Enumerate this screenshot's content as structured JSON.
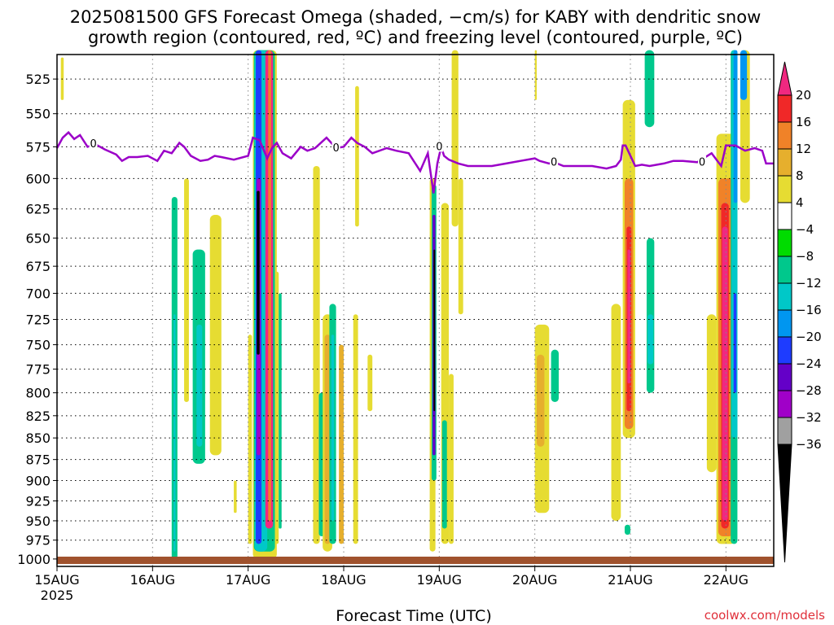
{
  "title_line1": "2025081500 GFS Forecast Omega (shaded, −cm/s) for KABY with dendritic snow",
  "title_line2": "growth region (contoured, red, ºC) and freezing level (contoured, purple, ºC)",
  "credit": "coolwx.com/models",
  "chart_data": {
    "type": "heatmap",
    "title": "2025081500 GFS Forecast Omega (shaded, −cm/s) for KABY with dendritic snow growth region (contoured, red, ºC) and freezing level (contoured, purple, ºC)",
    "xlabel": "Forecast Time (UTC)",
    "ylabel": "",
    "x_ticks": [
      "15AUG",
      "16AUG",
      "17AUG",
      "18AUG",
      "19AUG",
      "20AUG",
      "21AUG",
      "22AUG"
    ],
    "x_tick_year": "2025",
    "x_range_days": [
      0,
      7.5
    ],
    "y_ticks": [
      "525",
      "550",
      "575",
      "600",
      "625",
      "650",
      "675",
      "700",
      "725",
      "750",
      "775",
      "800",
      "825",
      "850",
      "875",
      "900",
      "925",
      "950",
      "975",
      "1000"
    ],
    "y_range_hpa": [
      508,
      1010
    ],
    "y_scale": "log-pressure (inverted)",
    "grid": "dotted",
    "colorbar": {
      "labels": [
        "20",
        "16",
        "12",
        "8",
        "4",
        "−4",
        "−8",
        "−12",
        "−16",
        "−20",
        "−24",
        "−28",
        "−32",
        "−36"
      ],
      "colors": [
        "#f02880",
        "#f02828",
        "#f08228",
        "#e6af2d",
        "#e6dc32",
        "#ffffff",
        "#00dc00",
        "#00c88c",
        "#00c8c8",
        "#0096f0",
        "#1e3cff",
        "#6400c8",
        "#a000c8",
        "#a0a0a0",
        "#000000"
      ]
    },
    "freezing_level_color": "#9b00c8",
    "freezing_level_label": "0",
    "freezing_level": {
      "x_days": [
        0,
        0.06,
        0.12,
        0.18,
        0.24,
        0.32,
        0.4,
        0.5,
        0.62,
        0.68,
        0.75,
        0.84,
        0.95,
        1.05,
        1.12,
        1.2,
        1.28,
        1.33,
        1.4,
        1.5,
        1.58,
        1.65,
        1.72,
        1.85,
        2.0,
        2.05,
        2.12,
        2.2,
        2.25,
        2.3,
        2.36,
        2.45,
        2.55,
        2.62,
        2.7,
        2.82,
        2.92,
        3.0,
        3.08,
        3.14,
        3.22,
        3.3,
        3.45,
        3.55,
        3.68,
        3.8,
        3.88,
        3.94,
        3.98,
        4.02,
        4.05,
        4.1,
        4.2,
        4.3,
        4.4,
        4.55,
        4.7,
        4.85,
        5.0,
        5.05,
        5.15,
        5.2,
        5.3,
        5.45,
        5.6,
        5.75,
        5.85,
        5.9,
        5.92,
        5.95,
        6.05,
        6.12,
        6.2,
        6.35,
        6.45,
        6.55,
        6.7,
        6.85,
        6.95,
        7.0,
        7.1,
        7.2,
        7.3,
        7.38,
        7.42,
        7.5
      ],
      "hpa": [
        576,
        568,
        564,
        569,
        566,
        575,
        573,
        577,
        581,
        586,
        583,
        583,
        582,
        586,
        578,
        580,
        572,
        575,
        582,
        586,
        585,
        582,
        583,
        585,
        582,
        568,
        570,
        584,
        576,
        572,
        580,
        584,
        575,
        578,
        576,
        568,
        576,
        575,
        568,
        572,
        575,
        580,
        576,
        578,
        580,
        594,
        580,
        612,
        588,
        575,
        582,
        585,
        588,
        590,
        590,
        590,
        588,
        586,
        584,
        586,
        588,
        587,
        590,
        590,
        590,
        592,
        590,
        585,
        574,
        574,
        590,
        589,
        590,
        588,
        586,
        586,
        587,
        580,
        590,
        574,
        574,
        578,
        576,
        578,
        588,
        588
      ]
    },
    "omega_regions": [
      {
        "x_days": [
          0.04,
          0.07
        ],
        "hpa_top": 510,
        "hpa_bottom": 540,
        "value": 4
      },
      {
        "x_days": [
          1.2,
          1.26
        ],
        "hpa_top": 615,
        "hpa_bottom": 1000,
        "value": -8
      },
      {
        "x_days": [
          1.22,
          1.24
        ],
        "hpa_top": 720,
        "hpa_bottom": 990,
        "value": -12
      },
      {
        "x_days": [
          1.33,
          1.38
        ],
        "hpa_top": 600,
        "hpa_bottom": 810,
        "value": 4
      },
      {
        "x_days": [
          1.42,
          1.55
        ],
        "hpa_top": 660,
        "hpa_bottom": 880,
        "value": -8
      },
      {
        "x_days": [
          1.46,
          1.52
        ],
        "hpa_top": 730,
        "hpa_bottom": 860,
        "value": -12
      },
      {
        "x_days": [
          1.6,
          1.72
        ],
        "hpa_top": 630,
        "hpa_bottom": 870,
        "value": 4
      },
      {
        "x_days": [
          1.85,
          1.88
        ],
        "hpa_top": 900,
        "hpa_bottom": 940,
        "value": 4
      },
      {
        "x_days": [
          2.0,
          2.04
        ],
        "hpa_top": 740,
        "hpa_bottom": 980,
        "value": 4
      },
      {
        "x_days": [
          2.05,
          2.3
        ],
        "hpa_top": 505,
        "hpa_bottom": 1000,
        "value": 4
      },
      {
        "x_days": [
          2.06,
          2.28
        ],
        "hpa_top": 505,
        "hpa_bottom": 990,
        "value": -8
      },
      {
        "x_days": [
          2.07,
          2.2
        ],
        "hpa_top": 505,
        "hpa_bottom": 990,
        "value": -12
      },
      {
        "x_days": [
          2.08,
          2.14
        ],
        "hpa_top": 505,
        "hpa_bottom": 980,
        "value": -20
      },
      {
        "x_days": [
          2.09,
          2.13
        ],
        "hpa_top": 600,
        "hpa_bottom": 870,
        "value": -28
      },
      {
        "x_days": [
          2.09,
          2.12
        ],
        "hpa_top": 610,
        "hpa_bottom": 760,
        "value": -36
      },
      {
        "x_days": [
          2.18,
          2.26
        ],
        "hpa_top": 505,
        "hpa_bottom": 960,
        "value": 20
      },
      {
        "x_days": [
          2.21,
          2.24
        ],
        "hpa_top": 505,
        "hpa_bottom": 950,
        "value": 12
      },
      {
        "x_days": [
          2.28,
          2.32
        ],
        "hpa_top": 680,
        "hpa_bottom": 980,
        "value": 4
      },
      {
        "x_days": [
          2.32,
          2.35
        ],
        "hpa_top": 700,
        "hpa_bottom": 960,
        "value": -8
      },
      {
        "x_days": [
          2.68,
          2.75
        ],
        "hpa_top": 590,
        "hpa_bottom": 980,
        "value": 4
      },
      {
        "x_days": [
          2.74,
          2.8
        ],
        "hpa_top": 800,
        "hpa_bottom": 970,
        "value": -8
      },
      {
        "x_days": [
          2.78,
          2.88
        ],
        "hpa_top": 720,
        "hpa_bottom": 990,
        "value": 4
      },
      {
        "x_days": [
          2.8,
          2.86
        ],
        "hpa_top": 740,
        "hpa_bottom": 980,
        "value": 8
      },
      {
        "x_days": [
          2.85,
          2.92
        ],
        "hpa_top": 710,
        "hpa_bottom": 980,
        "value": -8
      },
      {
        "x_days": [
          2.87,
          2.9
        ],
        "hpa_top": 740,
        "hpa_bottom": 950,
        "value": -12
      },
      {
        "x_days": [
          2.95,
          3.0
        ],
        "hpa_top": 750,
        "hpa_bottom": 980,
        "value": 8
      },
      {
        "x_days": [
          3.1,
          3.15
        ],
        "hpa_top": 720,
        "hpa_bottom": 980,
        "value": 4
      },
      {
        "x_days": [
          3.12,
          3.16
        ],
        "hpa_top": 530,
        "hpa_bottom": 640,
        "value": 4
      },
      {
        "x_days": [
          3.25,
          3.3
        ],
        "hpa_top": 760,
        "hpa_bottom": 820,
        "value": 4
      },
      {
        "x_days": [
          3.9,
          3.96
        ],
        "hpa_top": 600,
        "hpa_bottom": 990,
        "value": 4
      },
      {
        "x_days": [
          3.92,
          3.97
        ],
        "hpa_top": 605,
        "hpa_bottom": 900,
        "value": -8
      },
      {
        "x_days": [
          3.93,
          3.96
        ],
        "hpa_top": 630,
        "hpa_bottom": 870,
        "value": -24
      },
      {
        "x_days": [
          3.94,
          3.95
        ],
        "hpa_top": 660,
        "hpa_bottom": 820,
        "value": -36
      },
      {
        "x_days": [
          4.02,
          4.1
        ],
        "hpa_top": 620,
        "hpa_bottom": 980,
        "value": 4
      },
      {
        "x_days": [
          4.03,
          4.08
        ],
        "hpa_top": 830,
        "hpa_bottom": 960,
        "value": -8
      },
      {
        "x_days": [
          4.1,
          4.15
        ],
        "hpa_top": 780,
        "hpa_bottom": 980,
        "value": 4
      },
      {
        "x_days": [
          4.13,
          4.2
        ],
        "hpa_top": 505,
        "hpa_bottom": 640,
        "value": 4
      },
      {
        "x_days": [
          4.2,
          4.25
        ],
        "hpa_top": 600,
        "hpa_bottom": 720,
        "value": 4
      },
      {
        "x_days": [
          5.0,
          5.15
        ],
        "hpa_top": 730,
        "hpa_bottom": 940,
        "value": 4
      },
      {
        "x_days": [
          5.02,
          5.1
        ],
        "hpa_top": 760,
        "hpa_bottom": 860,
        "value": 8
      },
      {
        "x_days": [
          5.0,
          5.02
        ],
        "hpa_top": 505,
        "hpa_bottom": 540,
        "value": 4
      },
      {
        "x_days": [
          5.17,
          5.25
        ],
        "hpa_top": 755,
        "hpa_bottom": 810,
        "value": -8
      },
      {
        "x_days": [
          5.8,
          5.9
        ],
        "hpa_top": 710,
        "hpa_bottom": 950,
        "value": 4
      },
      {
        "x_days": [
          5.92,
          6.05
        ],
        "hpa_top": 540,
        "hpa_bottom": 850,
        "value": 4
      },
      {
        "x_days": [
          5.94,
          6.03
        ],
        "hpa_top": 600,
        "hpa_bottom": 840,
        "value": 12
      },
      {
        "x_days": [
          5.96,
          6.01
        ],
        "hpa_top": 640,
        "hpa_bottom": 820,
        "value": 16
      },
      {
        "x_days": [
          5.97,
          6.0
        ],
        "hpa_top": 660,
        "hpa_bottom": 790,
        "value": 20
      },
      {
        "x_days": [
          5.94,
          6.0
        ],
        "hpa_top": 955,
        "hpa_bottom": 968,
        "value": -8
      },
      {
        "x_days": [
          6.15,
          6.25
        ],
        "hpa_top": 505,
        "hpa_bottom": 560,
        "value": -8
      },
      {
        "x_days": [
          6.17,
          6.25
        ],
        "hpa_top": 650,
        "hpa_bottom": 800,
        "value": -8
      },
      {
        "x_days": [
          6.18,
          6.24
        ],
        "hpa_top": 720,
        "hpa_bottom": 770,
        "value": -12
      },
      {
        "x_days": [
          6.8,
          6.9
        ],
        "hpa_top": 720,
        "hpa_bottom": 890,
        "value": 4
      },
      {
        "x_days": [
          6.9,
          7.1
        ],
        "hpa_top": 565,
        "hpa_bottom": 980,
        "value": 4
      },
      {
        "x_days": [
          6.92,
          7.08
        ],
        "hpa_top": 600,
        "hpa_bottom": 970,
        "value": 12
      },
      {
        "x_days": [
          6.95,
          7.03
        ],
        "hpa_top": 620,
        "hpa_bottom": 960,
        "value": 16
      },
      {
        "x_days": [
          6.96,
          7.02
        ],
        "hpa_top": 640,
        "hpa_bottom": 950,
        "value": 20
      },
      {
        "x_days": [
          7.05,
          7.12
        ],
        "hpa_top": 505,
        "hpa_bottom": 980,
        "value": -8
      },
      {
        "x_days": [
          7.06,
          7.12
        ],
        "hpa_top": 505,
        "hpa_bottom": 850,
        "value": -12
      },
      {
        "x_days": [
          7.08,
          7.12
        ],
        "hpa_top": 505,
        "hpa_bottom": 620,
        "value": -16
      },
      {
        "x_days": [
          7.08,
          7.11
        ],
        "hpa_top": 700,
        "hpa_bottom": 800,
        "value": -20
      },
      {
        "x_days": [
          7.15,
          7.25
        ],
        "hpa_top": 505,
        "hpa_bottom": 620,
        "value": 4
      },
      {
        "x_days": [
          7.15,
          7.22
        ],
        "hpa_top": 505,
        "hpa_bottom": 540,
        "value": -16
      }
    ]
  }
}
